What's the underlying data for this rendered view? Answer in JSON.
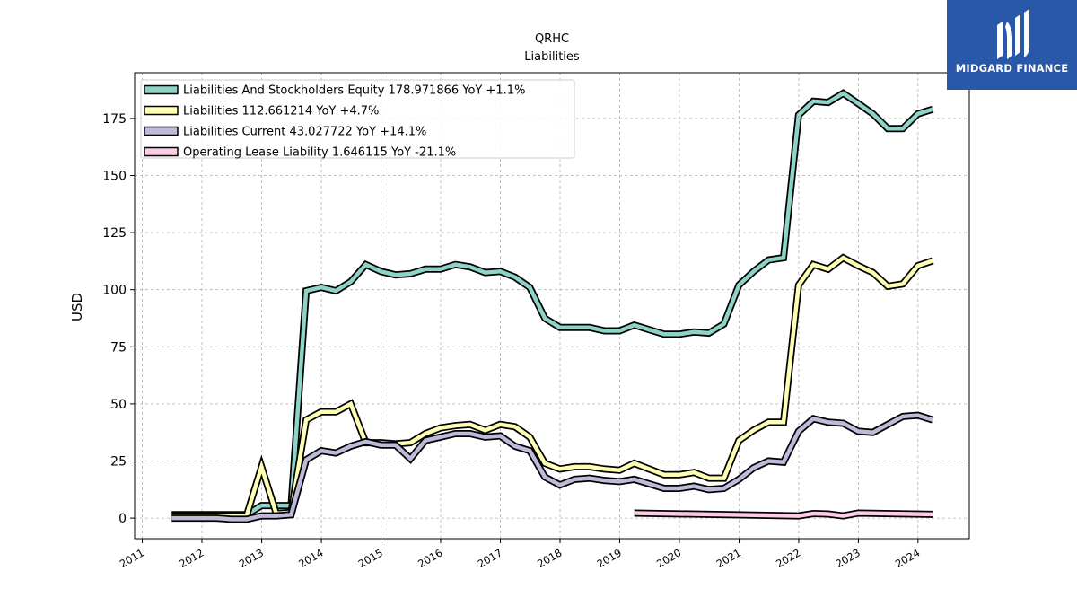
{
  "brand": {
    "name": "MIDGARD FINANCE",
    "bg_color": "#2a58a8"
  },
  "chart_data": {
    "type": "line",
    "title": "QRHC",
    "subtitle": "Liabilities",
    "ylabel": "USD",
    "xlim": [
      "2010-11-15",
      "2024-11-10"
    ],
    "ylim": [
      -9,
      195
    ],
    "yticks": [
      0,
      25,
      50,
      75,
      100,
      125,
      150,
      175
    ],
    "xticks": [
      "2011",
      "2012",
      "2013",
      "2014",
      "2015",
      "2016",
      "2017",
      "2018",
      "2019",
      "2020",
      "2021",
      "2022",
      "2023",
      "2024"
    ],
    "grid": true,
    "legend_position": "top-left",
    "series": [
      {
        "name": "Liabilities And Stockholders Equity",
        "legend_label": "Liabilities And Stockholders Equity  178.971866 YoY +1.1%",
        "color": "#8dd3c7",
        "points": [
          [
            "2011-06-30",
            1.5
          ],
          [
            "2011-09-30",
            1.5
          ],
          [
            "2011-12-31",
            1.5
          ],
          [
            "2012-03-31",
            1.5
          ],
          [
            "2012-06-30",
            1.5
          ],
          [
            "2012-09-30",
            1.5
          ],
          [
            "2012-12-31",
            5.5
          ],
          [
            "2013-03-31",
            5.5
          ],
          [
            "2013-06-30",
            5.5
          ],
          [
            "2013-09-30",
            99.5
          ],
          [
            "2013-12-31",
            101
          ],
          [
            "2014-03-31",
            99.5
          ],
          [
            "2014-06-30",
            103.5
          ],
          [
            "2014-09-30",
            111
          ],
          [
            "2014-12-31",
            108
          ],
          [
            "2015-03-31",
            106.5
          ],
          [
            "2015-06-30",
            107
          ],
          [
            "2015-09-30",
            109
          ],
          [
            "2015-12-31",
            109
          ],
          [
            "2016-03-31",
            111
          ],
          [
            "2016-06-30",
            110
          ],
          [
            "2016-09-30",
            107.5
          ],
          [
            "2016-12-31",
            108
          ],
          [
            "2017-03-31",
            105.5
          ],
          [
            "2017-06-30",
            101
          ],
          [
            "2017-09-30",
            87.5
          ],
          [
            "2017-12-31",
            83.5
          ],
          [
            "2018-03-31",
            83.5
          ],
          [
            "2018-06-30",
            83.5
          ],
          [
            "2018-09-30",
            82
          ],
          [
            "2018-12-31",
            82
          ],
          [
            "2019-03-31",
            84.5
          ],
          [
            "2019-06-30",
            82.5
          ],
          [
            "2019-09-30",
            80.5
          ],
          [
            "2019-12-31",
            80.5
          ],
          [
            "2020-03-31",
            81.5
          ],
          [
            "2020-06-30",
            81
          ],
          [
            "2020-09-30",
            85
          ],
          [
            "2020-12-31",
            102
          ],
          [
            "2021-03-31",
            108
          ],
          [
            "2021-06-30",
            113
          ],
          [
            "2021-09-30",
            114
          ],
          [
            "2021-12-31",
            176.5
          ],
          [
            "2022-03-31",
            182.5
          ],
          [
            "2022-06-30",
            182
          ],
          [
            "2022-09-30",
            186
          ],
          [
            "2022-12-31",
            181.5
          ],
          [
            "2023-03-31",
            177
          ],
          [
            "2023-06-30",
            170.5
          ],
          [
            "2023-09-30",
            170.5
          ],
          [
            "2023-12-31",
            177
          ],
          [
            "2024-03-31",
            179
          ]
        ]
      },
      {
        "name": "Liabilities",
        "legend_label": "Liabilities  112.661214 YoY +4.7%",
        "color": "#ffffb3",
        "points": [
          [
            "2011-06-30",
            1.0
          ],
          [
            "2011-09-30",
            1.0
          ],
          [
            "2011-12-31",
            1.0
          ],
          [
            "2012-03-31",
            1.0
          ],
          [
            "2012-06-30",
            1.0
          ],
          [
            "2012-09-30",
            1.0
          ],
          [
            "2012-12-31",
            22.5
          ],
          [
            "2013-03-31",
            2.0
          ],
          [
            "2013-06-30",
            2.5
          ],
          [
            "2013-09-30",
            43
          ],
          [
            "2013-12-31",
            46.5
          ],
          [
            "2014-03-31",
            46.5
          ],
          [
            "2014-06-30",
            50
          ],
          [
            "2014-09-30",
            33
          ],
          [
            "2014-12-31",
            33
          ],
          [
            "2015-03-31",
            32.5
          ],
          [
            "2015-06-30",
            33
          ],
          [
            "2015-09-30",
            37
          ],
          [
            "2015-12-31",
            39.5
          ],
          [
            "2016-03-31",
            40.5
          ],
          [
            "2016-06-30",
            41
          ],
          [
            "2016-09-30",
            38.5
          ],
          [
            "2016-12-31",
            41
          ],
          [
            "2017-03-31",
            40
          ],
          [
            "2017-06-30",
            35.5
          ],
          [
            "2017-09-30",
            24
          ],
          [
            "2017-12-31",
            21.5
          ],
          [
            "2018-03-31",
            22.5
          ],
          [
            "2018-06-30",
            22.5
          ],
          [
            "2018-09-30",
            21.5
          ],
          [
            "2018-12-31",
            21
          ],
          [
            "2019-03-31",
            24
          ],
          [
            "2019-06-30",
            21.5
          ],
          [
            "2019-09-30",
            19
          ],
          [
            "2019-12-31",
            19
          ],
          [
            "2020-03-31",
            20
          ],
          [
            "2020-06-30",
            17.5
          ],
          [
            "2020-09-30",
            17.5
          ],
          [
            "2020-12-31",
            34
          ],
          [
            "2021-03-31",
            38.5
          ],
          [
            "2021-06-30",
            42
          ],
          [
            "2021-09-30",
            42
          ],
          [
            "2021-12-31",
            102
          ],
          [
            "2022-03-31",
            111
          ],
          [
            "2022-06-30",
            109
          ],
          [
            "2022-09-30",
            114
          ],
          [
            "2022-12-31",
            110.5
          ],
          [
            "2023-03-31",
            107.5
          ],
          [
            "2023-06-30",
            101.5
          ],
          [
            "2023-09-30",
            102.5
          ],
          [
            "2023-12-31",
            110.5
          ],
          [
            "2024-03-31",
            112.7
          ]
        ]
      },
      {
        "name": "Liabilities Current",
        "legend_label": "Liabilities Current  43.027722 YoY +14.1%",
        "color": "#bebada",
        "points": [
          [
            "2011-06-30",
            0.0
          ],
          [
            "2011-09-30",
            0.0
          ],
          [
            "2011-12-31",
            0.0
          ],
          [
            "2012-03-31",
            0.0
          ],
          [
            "2012-06-30",
            -0.5
          ],
          [
            "2012-09-30",
            -0.5
          ],
          [
            "2012-12-31",
            1.0
          ],
          [
            "2013-03-31",
            1.0
          ],
          [
            "2013-06-30",
            1.5
          ],
          [
            "2013-09-30",
            25.5
          ],
          [
            "2013-12-31",
            29.5
          ],
          [
            "2014-03-31",
            28.5
          ],
          [
            "2014-06-30",
            31.5
          ],
          [
            "2014-09-30",
            33.5
          ],
          [
            "2014-12-31",
            32
          ],
          [
            "2015-03-31",
            32
          ],
          [
            "2015-06-30",
            26
          ],
          [
            "2015-09-30",
            34
          ],
          [
            "2015-12-31",
            35.5
          ],
          [
            "2016-03-31",
            37
          ],
          [
            "2016-06-30",
            37
          ],
          [
            "2016-09-30",
            35.5
          ],
          [
            "2016-12-31",
            36
          ],
          [
            "2017-03-31",
            31.5
          ],
          [
            "2017-06-30",
            29.5
          ],
          [
            "2017-09-30",
            18
          ],
          [
            "2017-12-31",
            14.5
          ],
          [
            "2018-03-31",
            17
          ],
          [
            "2018-06-30",
            17.5
          ],
          [
            "2018-09-30",
            16.5
          ],
          [
            "2018-12-31",
            16
          ],
          [
            "2019-03-31",
            17
          ],
          [
            "2019-06-30",
            15
          ],
          [
            "2019-09-30",
            13
          ],
          [
            "2019-12-31",
            13
          ],
          [
            "2020-03-31",
            14
          ],
          [
            "2020-06-30",
            12.5
          ],
          [
            "2020-09-30",
            13
          ],
          [
            "2020-12-31",
            17
          ],
          [
            "2021-03-31",
            22
          ],
          [
            "2021-06-30",
            25
          ],
          [
            "2021-09-30",
            24.5
          ],
          [
            "2021-12-31",
            38
          ],
          [
            "2022-03-31",
            43.5
          ],
          [
            "2022-06-30",
            42
          ],
          [
            "2022-09-30",
            41.5
          ],
          [
            "2022-12-31",
            38
          ],
          [
            "2023-03-31",
            37.5
          ],
          [
            "2023-06-30",
            41
          ],
          [
            "2023-09-30",
            44.5
          ],
          [
            "2023-12-31",
            45
          ],
          [
            "2024-03-31",
            43
          ]
        ]
      },
      {
        "name": "Operating Lease Liability",
        "legend_label": "Operating Lease Liability  1.646115 YoY -21.1%",
        "color": "#fccde5",
        "points": [
          [
            "2019-03-31",
            2.2
          ],
          [
            "2021-12-31",
            1.0
          ],
          [
            "2022-03-31",
            2.0
          ],
          [
            "2022-06-30",
            1.8
          ],
          [
            "2022-09-30",
            1.0
          ],
          [
            "2022-12-31",
            2.2
          ],
          [
            "2024-03-31",
            1.65
          ]
        ]
      }
    ]
  }
}
